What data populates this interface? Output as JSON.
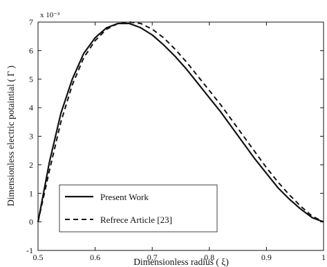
{
  "chart_data": {
    "type": "line",
    "xlabel": "Dimensionless radius ( ξ)",
    "ylabel": "Dimensionless electric potaintial ( Γ )",
    "xlim": [
      0.5,
      1
    ],
    "ylim": [
      -1,
      7
    ],
    "y_multiplier": "x 10⁻³",
    "x_ticks": [
      "0.5",
      "0.6",
      "0.7",
      "0.8",
      "0.9",
      "1"
    ],
    "x_tick_values": [
      0.5,
      0.6,
      0.7,
      0.8,
      0.9,
      1.0
    ],
    "y_ticks": [
      "-1",
      "0",
      "1",
      "2",
      "3",
      "4",
      "5",
      "6",
      "7"
    ],
    "y_tick_values": [
      -1,
      0,
      1,
      2,
      3,
      4,
      5,
      6,
      7
    ],
    "grid": false,
    "legend_position": "bottom-left",
    "series": [
      {
        "name": "Present Work",
        "style": "solid",
        "x": [
          0.5,
          0.52,
          0.54,
          0.56,
          0.58,
          0.6,
          0.62,
          0.64,
          0.66,
          0.68,
          0.7,
          0.72,
          0.74,
          0.76,
          0.78,
          0.8,
          0.82,
          0.84,
          0.86,
          0.88,
          0.9,
          0.92,
          0.94,
          0.96,
          0.98,
          1.0
        ],
        "y": [
          0.0,
          2.1,
          3.8,
          5.0,
          5.9,
          6.45,
          6.8,
          6.95,
          6.95,
          6.8,
          6.55,
          6.2,
          5.8,
          5.35,
          4.85,
          4.35,
          3.85,
          3.3,
          2.75,
          2.2,
          1.7,
          1.2,
          0.8,
          0.45,
          0.15,
          0.0
        ]
      },
      {
        "name": "Refrece Article [23]",
        "style": "dashed",
        "x": [
          0.5,
          0.52,
          0.54,
          0.56,
          0.58,
          0.6,
          0.62,
          0.64,
          0.66,
          0.68,
          0.7,
          0.72,
          0.74,
          0.76,
          0.78,
          0.8,
          0.82,
          0.84,
          0.86,
          0.88,
          0.9,
          0.92,
          0.94,
          0.96,
          0.98,
          1.0
        ],
        "y": [
          0.0,
          1.8,
          3.5,
          4.8,
          5.75,
          6.35,
          6.75,
          6.95,
          7.0,
          6.95,
          6.75,
          6.45,
          6.05,
          5.6,
          5.1,
          4.6,
          4.1,
          3.55,
          3.0,
          2.45,
          1.9,
          1.4,
          0.95,
          0.55,
          0.2,
          0.0
        ]
      }
    ]
  }
}
